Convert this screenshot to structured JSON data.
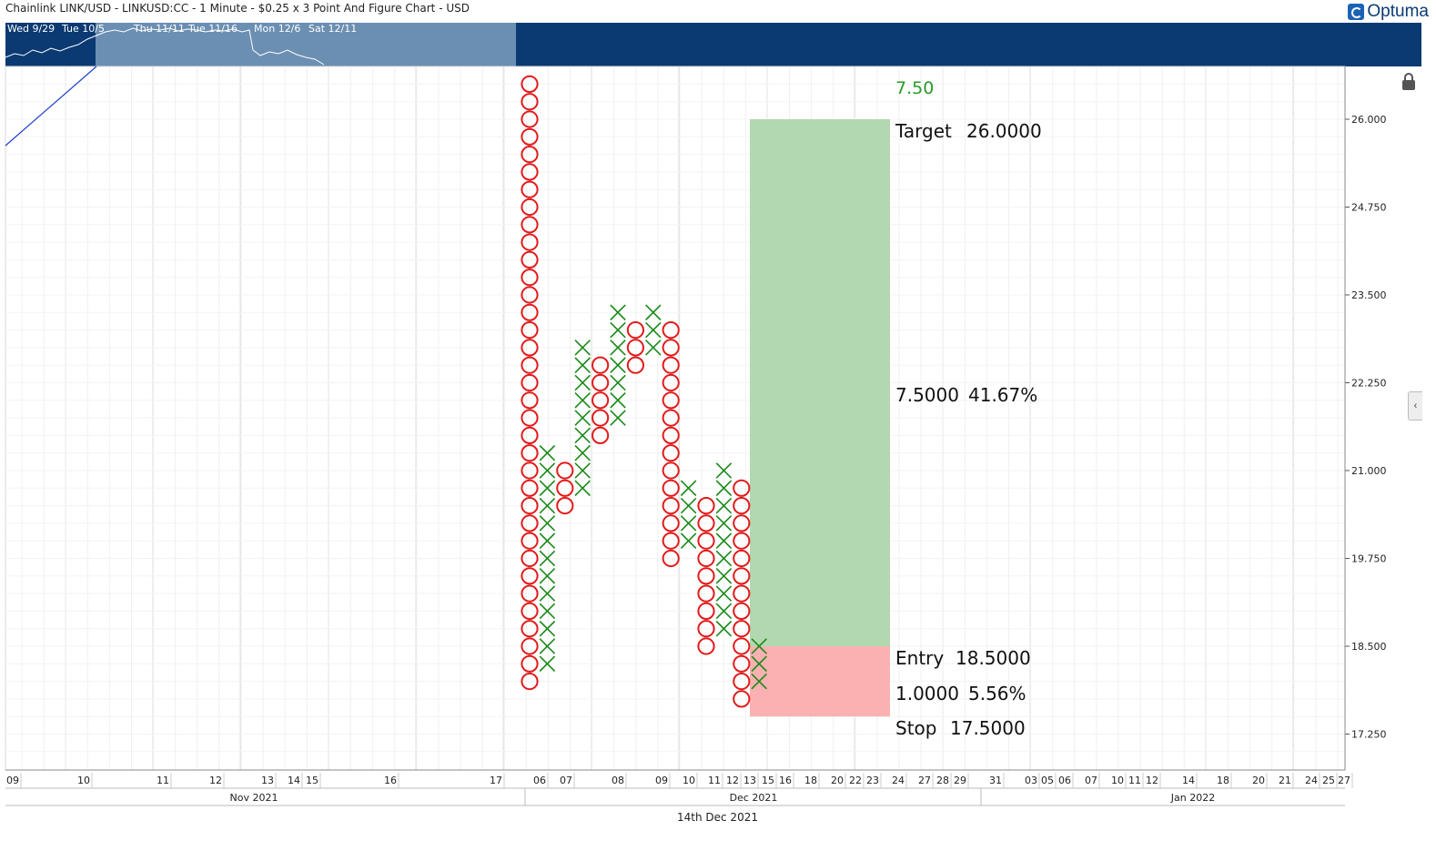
{
  "header": {
    "title": "Chainlink LINK/USD - LINKUSD:CC - 1 Minute - $0.25 x 3 Point And Figure Chart - USD",
    "logo_text": "Optuma"
  },
  "overview": {
    "labels": [
      "Wed 9/29",
      "Tue 10/5",
      "Thu 11/11",
      "Tue 11/16",
      "Mon 12/6",
      "Sat 12/11"
    ]
  },
  "icons": {
    "lock": "lock-icon",
    "collapse": "chevron-left-icon"
  },
  "footer": {
    "date_label": "14th Dec 2021"
  },
  "colors": {
    "x_mark": "#1a8a1a",
    "o_mark": "#e21b1b",
    "target_zone": "#b2d8b0",
    "stop_zone": "#fbb1b1",
    "trendline": "#2040d0",
    "count_label": "#2a9a2a",
    "overview_bg": "#0b3a73"
  },
  "chart_data": {
    "type": "point-and-figure",
    "box_size": 0.25,
    "reversal": 3,
    "y_axis": {
      "min": 16.75,
      "max": 26.75,
      "ticks": [
        "26.000",
        "24.750",
        "23.500",
        "22.250",
        "21.000",
        "19.750",
        "18.500",
        "17.250"
      ]
    },
    "columns": [
      {
        "type": "O",
        "high": 26.5,
        "low": 18.0
      },
      {
        "type": "X",
        "low": 18.25,
        "high": 21.25
      },
      {
        "type": "O",
        "high": 21.0,
        "low": 20.5
      },
      {
        "type": "X",
        "low": 20.75,
        "high": 22.75
      },
      {
        "type": "O",
        "high": 22.5,
        "low": 21.5
      },
      {
        "type": "X",
        "low": 21.75,
        "high": 23.25
      },
      {
        "type": "O",
        "high": 23.0,
        "low": 22.5
      },
      {
        "type": "X",
        "low": 22.75,
        "high": 23.25
      },
      {
        "type": "O",
        "high": 23.0,
        "low": 19.75
      },
      {
        "type": "X",
        "low": 20.0,
        "high": 20.75
      },
      {
        "type": "O",
        "high": 20.5,
        "low": 18.5
      },
      {
        "type": "X",
        "low": 18.75,
        "high": 21.0
      },
      {
        "type": "O",
        "high": 20.75,
        "low": 17.75
      },
      {
        "type": "X",
        "low": 18.0,
        "high": 18.5
      }
    ],
    "trade": {
      "count_label": "7.50",
      "target_label": "Target",
      "target_value": "26.0000",
      "target": 26.0,
      "gain_value": "7.5000",
      "gain_percent": "41.67%",
      "entry_label": "Entry",
      "entry_value": "18.5000",
      "entry": 18.5,
      "risk_value": "1.0000",
      "risk_percent": "5.56%",
      "stop_label": "Stop",
      "stop_value": "17.5000",
      "stop": 17.5
    },
    "x_axis": {
      "day_labels": [
        "09",
        "10",
        "11",
        "12",
        "13",
        "14",
        "15",
        "16",
        "17",
        "06",
        "07",
        "08",
        "09",
        "10",
        "11",
        "12",
        "13",
        "15",
        "16",
        "18",
        "20",
        "22",
        "23",
        "24",
        "27",
        "28",
        "29",
        "31",
        "03",
        "05",
        "06",
        "07",
        "10",
        "11",
        "12",
        "14",
        "18",
        "20",
        "21",
        "24",
        "25",
        "27"
      ],
      "month_labels": [
        "Nov 2021",
        "Dec 2021",
        "Jan 2022"
      ]
    }
  }
}
